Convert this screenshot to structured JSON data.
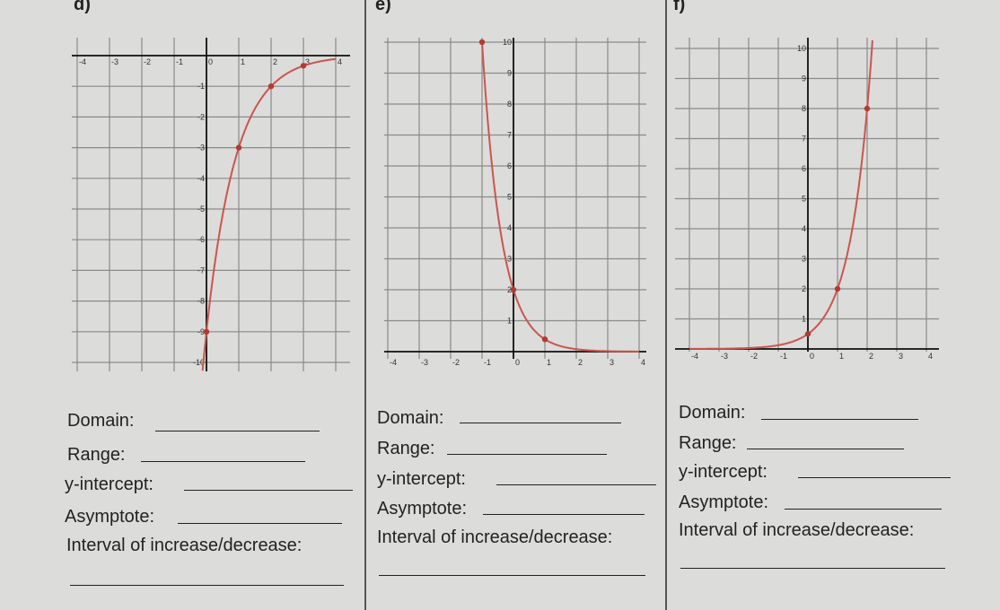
{
  "panels": [
    {
      "label": "d)",
      "x_ticks": [
        "-4",
        "-3",
        "-2",
        "-1",
        "0",
        "1",
        "2",
        "3",
        "4"
      ],
      "y_ticks": [
        "-1",
        "-2",
        "-3",
        "-4",
        "-5",
        "-6",
        "-7",
        "-8",
        "-9",
        "-10"
      ],
      "fields": {
        "domain": "Domain:",
        "range": "Range:",
        "y_intercept": "y-intercept:",
        "asymptote": "Asymptote:",
        "interval": "Interval of increase/decrease:"
      }
    },
    {
      "label": "e)",
      "x_ticks": [
        "-4",
        "-3",
        "-2",
        "-1",
        "0",
        "1",
        "2",
        "3",
        "4"
      ],
      "y_ticks": [
        "1",
        "2",
        "3",
        "4",
        "5",
        "6",
        "7",
        "8",
        "9",
        "10"
      ],
      "fields": {
        "domain": "Domain:",
        "range": "Range:",
        "y_intercept": "y-intercept:",
        "asymptote": "Asymptote:",
        "interval": "Interval of increase/decrease:"
      }
    },
    {
      "label": "f)",
      "x_ticks": [
        "-4",
        "-3",
        "-2",
        "-1",
        "0",
        "1",
        "2",
        "3",
        "4"
      ],
      "y_ticks": [
        "1",
        "2",
        "3",
        "4",
        "5",
        "6",
        "7",
        "8",
        "9",
        "10"
      ],
      "fields": {
        "domain": "Domain:",
        "range": "Range:",
        "y_intercept": "y-intercept:",
        "asymptote": "Asymptote:",
        "interval": "Interval of increase/decrease:"
      }
    }
  ],
  "chart_data": [
    {
      "type": "line",
      "title": "d)",
      "xlim": [
        -4,
        4
      ],
      "ylim": [
        -10,
        0
      ],
      "points": [
        [
          0,
          -9
        ],
        [
          1,
          -3
        ],
        [
          2,
          -1
        ],
        [
          3,
          -0.33
        ]
      ],
      "curve": "y = -9*(1/3)^x"
    },
    {
      "type": "line",
      "title": "e)",
      "xlim": [
        -4,
        4
      ],
      "ylim": [
        0,
        10
      ],
      "points": [
        [
          -1,
          10
        ],
        [
          0,
          2
        ],
        [
          1,
          0.4
        ]
      ],
      "curve": "y = 2*(1/5)^x"
    },
    {
      "type": "line",
      "title": "f)",
      "xlim": [
        -4,
        4
      ],
      "ylim": [
        0,
        10
      ],
      "points": [
        [
          0,
          0.5
        ],
        [
          1,
          2
        ],
        [
          2,
          8
        ]
      ],
      "curve": "y = 0.5*4^x"
    }
  ]
}
